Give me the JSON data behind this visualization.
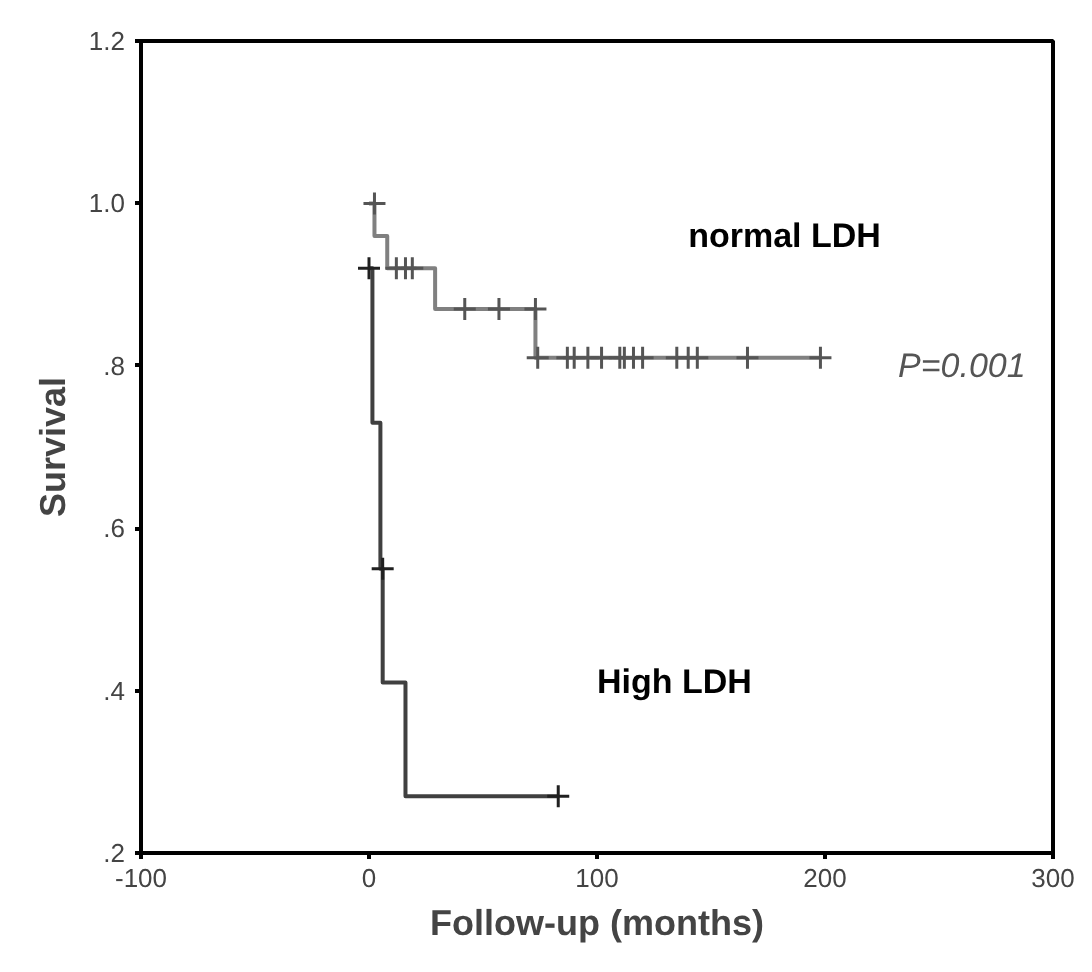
{
  "chart_data": {
    "type": "step",
    "xlabel": "Follow-up (months)",
    "ylabel": "Survival",
    "xlim": [
      -100,
      300
    ],
    "xticks": [
      -100,
      0,
      100,
      200,
      300
    ],
    "ylim": [
      0.2,
      1.2
    ],
    "yticks": [
      {
        "value": 0.2,
        "label": ".2"
      },
      {
        "value": 0.4,
        "label": ".4"
      },
      {
        "value": 0.6,
        "label": ".6"
      },
      {
        "value": 0.8,
        "label": ".8"
      },
      {
        "value": 1.0,
        "label": "1.0"
      },
      {
        "value": 1.2,
        "label": "1.2"
      }
    ],
    "grid": false,
    "series": [
      {
        "color": "#808080",
        "marker": "none",
        "x": [
          0,
          2.4,
          8,
          29,
          73,
          198
        ],
        "values": [
          1.0,
          0.96,
          0.92,
          0.87,
          0.81,
          0.81
        ]
      },
      {
        "type": "scatter",
        "color": "#555555",
        "marker": "cross",
        "x": [
          2.4,
          12,
          16,
          19,
          42,
          57,
          73,
          74,
          87,
          90,
          96,
          102,
          110,
          112,
          116,
          120,
          135,
          140,
          144,
          166,
          198
        ],
        "values": [
          1.0,
          0.92,
          0.92,
          0.92,
          0.87,
          0.87,
          0.87,
          0.81,
          0.81,
          0.81,
          0.81,
          0.81,
          0.81,
          0.81,
          0.81,
          0.81,
          0.81,
          0.81,
          0.81,
          0.81,
          0.81
        ]
      },
      {
        "color": "#404040",
        "marker": "none",
        "x": [
          0,
          1.5,
          5,
          6,
          16,
          83
        ],
        "values": [
          0.92,
          0.73,
          0.55,
          0.41,
          0.27,
          0.27
        ]
      },
      {
        "type": "scatter",
        "color": "#202020",
        "marker": "cross",
        "x": [
          0,
          6,
          83
        ],
        "values": [
          0.92,
          0.55,
          0.27
        ]
      }
    ],
    "annotations": [
      "normal LDH",
      "High LDH",
      "P=0.001"
    ]
  }
}
